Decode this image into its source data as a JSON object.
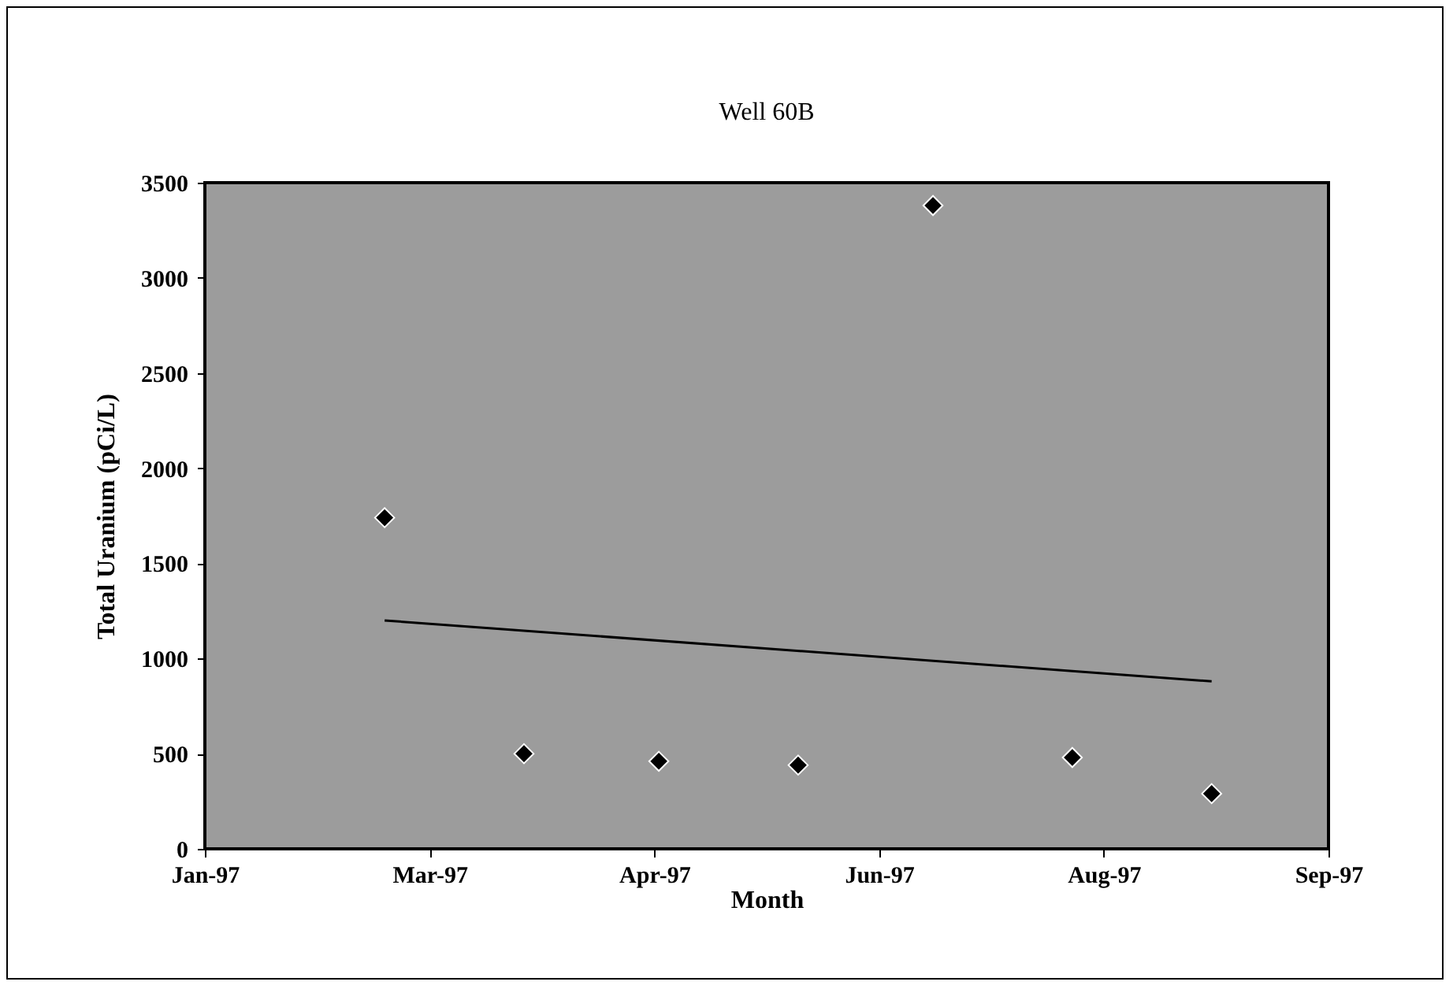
{
  "chart_data": {
    "type": "scatter",
    "title": "Well 60B",
    "xlabel": "Month",
    "ylabel": "Total Uranium (pCi/L)",
    "xlim": [
      "1997-01-20",
      "1997-09-27"
    ],
    "xticks": [
      {
        "value": "1997-01-20",
        "label": "Jan-97"
      },
      {
        "value": "1997-03-11",
        "label": "Mar-97"
      },
      {
        "value": "1997-04-30",
        "label": "Apr-97"
      },
      {
        "value": "1997-06-19",
        "label": "Jun-97"
      },
      {
        "value": "1997-08-08",
        "label": "Aug-97"
      },
      {
        "value": "1997-09-27",
        "label": "Sep-97"
      }
    ],
    "ylim": [
      0,
      3500
    ],
    "yticks": [
      0,
      500,
      1000,
      1500,
      2000,
      2500,
      3000,
      3500
    ],
    "grid": false,
    "series": [
      {
        "marker": "diamond",
        "color": "#000000",
        "x": [
          "1997-03-01",
          "1997-04-01",
          "1997-05-01",
          "1997-06-01",
          "1997-07-01",
          "1997-08-01",
          "1997-09-01"
        ],
        "values": [
          1740,
          500,
          460,
          440,
          3380,
          480,
          290
        ]
      },
      {
        "type": "line",
        "color": "#000000",
        "x": [
          "1997-03-01",
          "1997-09-01"
        ],
        "values": [
          1200,
          880
        ]
      }
    ]
  }
}
